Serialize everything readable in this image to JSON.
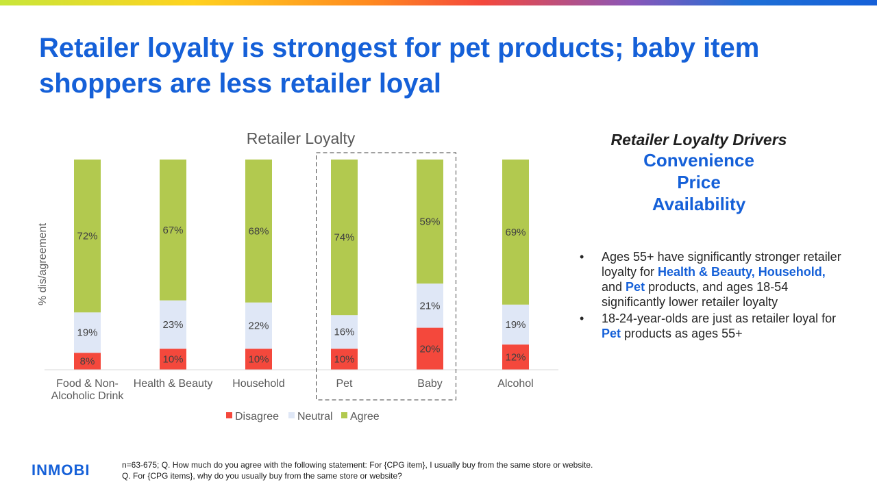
{
  "title": "Retailer loyalty is strongest for pet products; baby item shoppers are less retailer loyal",
  "colors": {
    "accent": "#1560d8",
    "disagree": "#f4483c",
    "neutral": "#dfe7f6",
    "agree": "#b2c94f"
  },
  "chart_data": {
    "type": "bar",
    "stacked": true,
    "title": "Retailer Loyalty",
    "ylabel": "% dis/agreement",
    "xlabel": "",
    "categories": [
      "Food & Non-Alcoholic Drink",
      "Health & Beauty",
      "Household",
      "Pet",
      "Baby",
      "Alcohol"
    ],
    "series": [
      {
        "name": "Disagree",
        "color": "#f4483c",
        "values": [
          8,
          10,
          10,
          10,
          20,
          12
        ],
        "labels": [
          "8%",
          "10%",
          "10%",
          "10%",
          "20%",
          "12%"
        ]
      },
      {
        "name": "Neutral",
        "color": "#dfe7f6",
        "values": [
          19,
          23,
          22,
          16,
          21,
          19
        ],
        "labels": [
          "19%",
          "23%",
          "22%",
          "16%",
          "21%",
          "19%"
        ]
      },
      {
        "name": "Agree",
        "color": "#b2c94f",
        "values": [
          72,
          67,
          68,
          74,
          59,
          69
        ],
        "labels": [
          "72%",
          "67%",
          "68%",
          "74%",
          "59%",
          "69%"
        ]
      }
    ],
    "highlighted_categories": [
      "Pet",
      "Baby"
    ],
    "legend_position": "bottom",
    "grid": false
  },
  "drivers": {
    "heading": "Retailer Loyalty Drivers",
    "items": [
      "Convenience",
      "Price",
      "Availability"
    ]
  },
  "bullets": {
    "b1": {
      "part1": "Ages 55+ have significantly stronger retailer loyalty for ",
      "hl1": "Health & Beauty, Household,",
      "part2": " and ",
      "hl2": "Pet",
      "part3": " products, and ages 18-54 significantly lower retailer loyalty"
    },
    "b2": {
      "part1": "18-24-year-olds are just as retailer loyal for ",
      "hl1": "Pet",
      "part2": " products as ages 55+"
    }
  },
  "footnote": {
    "line1": "n=63-675; Q. How much do you agree with the following statement: For {CPG item}, I usually buy from the same store or website.",
    "line2": "Q. For {CPG items}, why do you usually buy from the same store or website?"
  },
  "logo": {
    "text": "INMOBI"
  }
}
